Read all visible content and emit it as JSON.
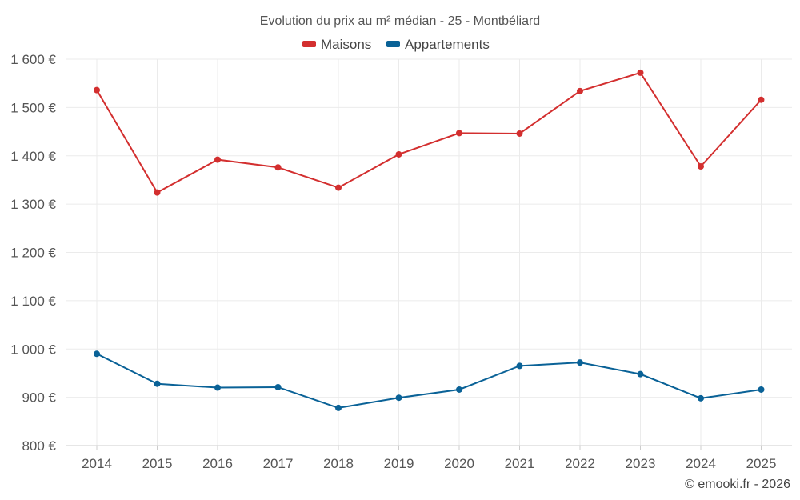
{
  "chart_data": {
    "type": "line",
    "title": "Evolution du prix au m² médian - 25 - Montbéliard",
    "categories": [
      "2014",
      "2015",
      "2016",
      "2017",
      "2018",
      "2019",
      "2020",
      "2021",
      "2022",
      "2023",
      "2024",
      "2025"
    ],
    "series": [
      {
        "name": "Maisons",
        "color": "#d32f2f",
        "values": [
          1536,
          1324,
          1392,
          1376,
          1334,
          1403,
          1447,
          1446,
          1534,
          1572,
          1378,
          1516
        ]
      },
      {
        "name": "Appartements",
        "color": "#0a6297",
        "values": [
          990,
          928,
          920,
          921,
          878,
          899,
          916,
          965,
          972,
          948,
          898,
          916
        ]
      }
    ],
    "ylim": [
      800,
      1600
    ],
    "yticks": [
      800,
      900,
      1000,
      1100,
      1200,
      1300,
      1400,
      1500,
      1600
    ],
    "ytick_labels": [
      "800 €",
      "900 €",
      "1 000 €",
      "1 100 €",
      "1 200 €",
      "1 300 €",
      "1 400 €",
      "1 500 €",
      "1 600 €"
    ],
    "xlabel": "",
    "ylabel": "",
    "legend_position": "top-center",
    "grid": true
  },
  "credit": "© emooki.fr - 2026"
}
